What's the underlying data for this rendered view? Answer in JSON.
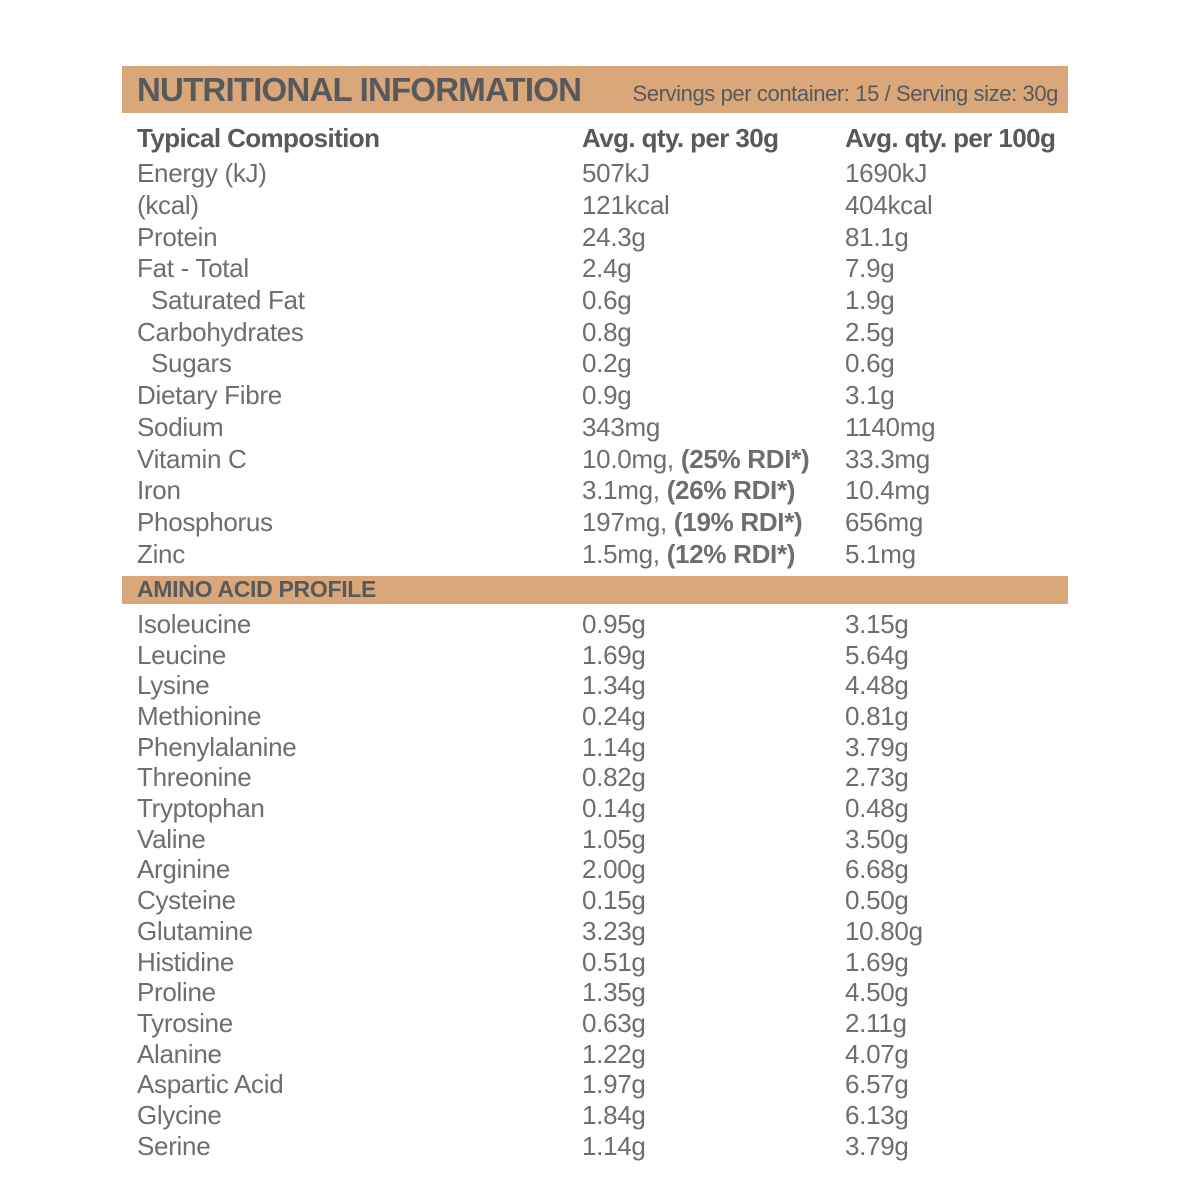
{
  "header": {
    "title": "NUTRITIONAL INFORMATION",
    "servings_info": "Servings per container: 15 / Serving size: 30g"
  },
  "columns": {
    "label": "Typical Composition",
    "per30": "Avg. qty. per 30g",
    "per100": "Avg. qty. per 100g"
  },
  "colors": {
    "band": "#D9A77A",
    "heading_text": "#58595B",
    "body_text": "#6D6E70"
  },
  "nutrients": [
    {
      "label": "Energy (kJ)",
      "indent": false,
      "per30": "507kJ",
      "per30_rdi": "",
      "per100": "1690kJ"
    },
    {
      "label": "(kcal)",
      "indent": false,
      "per30": "121kcal",
      "per30_rdi": "",
      "per100": "404kcal"
    },
    {
      "label": "Protein",
      "indent": false,
      "per30": "24.3g",
      "per30_rdi": "",
      "per100": "81.1g"
    },
    {
      "label": "Fat - Total",
      "indent": false,
      "per30": "2.4g",
      "per30_rdi": "",
      "per100": "7.9g"
    },
    {
      "label": "Saturated Fat",
      "indent": true,
      "per30": "0.6g",
      "per30_rdi": "",
      "per100": "1.9g"
    },
    {
      "label": "Carbohydrates",
      "indent": false,
      "per30": "0.8g",
      "per30_rdi": "",
      "per100": "2.5g"
    },
    {
      "label": "Sugars",
      "indent": true,
      "per30": "0.2g",
      "per30_rdi": "",
      "per100": "0.6g"
    },
    {
      "label": "Dietary Fibre",
      "indent": false,
      "per30": "0.9g",
      "per30_rdi": "",
      "per100": "3.1g"
    },
    {
      "label": "Sodium",
      "indent": false,
      "per30": "343mg",
      "per30_rdi": "",
      "per100": "1140mg"
    },
    {
      "label": "Vitamin C",
      "indent": false,
      "per30": "10.0mg,",
      "per30_rdi": "(25% RDI*)",
      "per100": "33.3mg"
    },
    {
      "label": "Iron",
      "indent": false,
      "per30": "3.1mg,",
      "per30_rdi": "(26% RDI*)",
      "per100": "10.4mg"
    },
    {
      "label": "Phosphorus",
      "indent": false,
      "per30": "197mg,",
      "per30_rdi": "(19% RDI*)",
      "per100": "656mg"
    },
    {
      "label": "Zinc",
      "indent": false,
      "per30": "1.5mg,",
      "per30_rdi": "(12% RDI*)",
      "per100": "5.1mg"
    }
  ],
  "amino_section": {
    "title": "AMINO ACID PROFILE",
    "rows": [
      {
        "label": "Isoleucine",
        "per30": "0.95g",
        "per100": "3.15g"
      },
      {
        "label": "Leucine",
        "per30": "1.69g",
        "per100": "5.64g"
      },
      {
        "label": "Lysine",
        "per30": "1.34g",
        "per100": "4.48g"
      },
      {
        "label": "Methionine",
        "per30": "0.24g",
        "per100": "0.81g"
      },
      {
        "label": "Phenylalanine",
        "per30": "1.14g",
        "per100": "3.79g"
      },
      {
        "label": "Threonine",
        "per30": "0.82g",
        "per100": "2.73g"
      },
      {
        "label": "Tryptophan",
        "per30": "0.14g",
        "per100": "0.48g"
      },
      {
        "label": "Valine",
        "per30": "1.05g",
        "per100": "3.50g"
      },
      {
        "label": "Arginine",
        "per30": "2.00g",
        "per100": "6.68g"
      },
      {
        "label": "Cysteine",
        "per30": "0.15g",
        "per100": "0.50g"
      },
      {
        "label": "Glutamine",
        "per30": "3.23g",
        "per100": "10.80g"
      },
      {
        "label": "Histidine",
        "per30": "0.51g",
        "per100": "1.69g"
      },
      {
        "label": "Proline",
        "per30": "1.35g",
        "per100": "4.50g"
      },
      {
        "label": "Tyrosine",
        "per30": "0.63g",
        "per100": "2.11g"
      },
      {
        "label": "Alanine",
        "per30": "1.22g",
        "per100": "4.07g"
      },
      {
        "label": "Aspartic Acid",
        "per30": "1.97g",
        "per100": "6.57g"
      },
      {
        "label": "Glycine",
        "per30": "1.84g",
        "per100": "6.13g"
      },
      {
        "label": "Serine",
        "per30": "1.14g",
        "per100": "3.79g"
      }
    ]
  }
}
